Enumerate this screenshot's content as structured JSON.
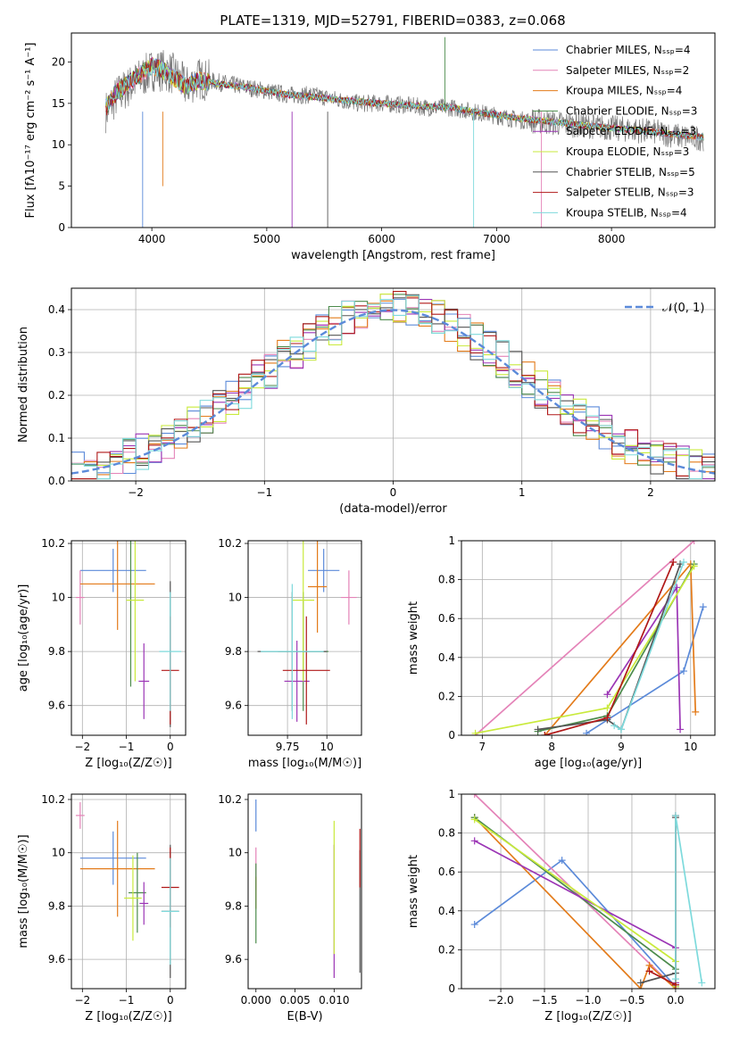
{
  "figure": {
    "title": "PLATE=1319, MJD=52791, FIBERID=0383, z=0.068"
  },
  "colors": [
    "#5b8ad9",
    "#e483b8",
    "#e37b1a",
    "#4c8b4c",
    "#9b35b5",
    "#c9ea3c",
    "#555555",
    "#b01818",
    "#7edadc"
  ],
  "chart_data": [
    {
      "id": "spectrum",
      "type": "line",
      "xlabel": "wavelength [Angstrom, rest frame]",
      "ylabel": "Flux [fλ10⁻¹⁷ erg cm⁻² s⁻¹ A⁻¹]",
      "xlim": [
        3300,
        8900
      ],
      "ylim": [
        0,
        23.5
      ],
      "xticks": [
        4000,
        5000,
        6000,
        7000,
        8000
      ],
      "yticks": [
        0,
        5,
        10,
        15,
        20
      ],
      "grid": false,
      "legend_position": "right",
      "data": {
        "x": [
          3600,
          3700,
          3800,
          3900,
          4000,
          4100,
          4200,
          4300,
          4400,
          4600,
          4800,
          5000,
          5200,
          5400,
          5600,
          5800,
          6000,
          6200,
          6400,
          6600,
          6800,
          7000,
          7200,
          7400,
          7600,
          7800,
          8000,
          8200,
          8400,
          8600,
          8800
        ],
        "observed": [
          14,
          16,
          17,
          18,
          19,
          19,
          18.5,
          17,
          18,
          17.5,
          17,
          16.5,
          16,
          16,
          15.5,
          15,
          15,
          14.8,
          14.5,
          14.5,
          14,
          13.5,
          13,
          12.8,
          12.5,
          12.3,
          12,
          11.8,
          11.5,
          11,
          10.8
        ],
        "model": [
          14.5,
          16.5,
          17.5,
          18.5,
          19.5,
          19,
          18,
          17,
          17.8,
          17.3,
          17,
          16.5,
          16,
          15.8,
          15.5,
          15.2,
          15,
          14.8,
          14.6,
          14.5,
          14,
          13.6,
          13.2,
          12.9,
          12.6,
          12.3,
          12,
          11.8,
          11.5,
          11.2,
          10.9
        ]
      },
      "series": [
        {
          "name": "Chabrier MILES, Nₛₛₚ=4"
        },
        {
          "name": "Salpeter MILES, Nₛₛₚ=2"
        },
        {
          "name": "Kroupa MILES, Nₛₛₚ=4"
        },
        {
          "name": "Chabrier ELODIE, Nₛₛₚ=3"
        },
        {
          "name": "Salpeter ELODIE, Nₛₛₚ=3"
        },
        {
          "name": "Kroupa ELODIE, Nₛₛₚ=3"
        },
        {
          "name": "Chabrier STELIB, Nₛₛₚ=5"
        },
        {
          "name": "Salpeter STELIB, Nₛₛₚ=3"
        },
        {
          "name": "Kroupa STELIB, Nₛₛₚ=4"
        }
      ]
    },
    {
      "id": "residuals",
      "type": "line",
      "xlabel": "(data-model)/error",
      "ylabel": "Normed distribution",
      "xlim": [
        -2.5,
        2.5
      ],
      "ylim": [
        0,
        0.45
      ],
      "xticks": [
        -2,
        -1,
        0,
        1,
        2
      ],
      "yticks": [
        0.0,
        0.1,
        0.2,
        0.3,
        0.4
      ],
      "grid": true,
      "legend_position": "top-right",
      "legend_label": "𝒩(0, 1)",
      "bin_centers": [
        -2.45,
        -2.35,
        -2.25,
        -2.15,
        -2.05,
        -1.95,
        -1.85,
        -1.75,
        -1.65,
        -1.55,
        -1.45,
        -1.35,
        -1.25,
        -1.15,
        -1.05,
        -0.95,
        -0.85,
        -0.75,
        -0.65,
        -0.55,
        -0.45,
        -0.35,
        -0.25,
        -0.15,
        -0.05,
        0.05,
        0.15,
        0.25,
        0.35,
        0.45,
        0.55,
        0.65,
        0.75,
        0.85,
        0.95,
        1.05,
        1.15,
        1.25,
        1.35,
        1.45,
        1.55,
        1.65,
        1.75,
        1.85,
        1.95,
        2.05,
        2.15,
        2.25,
        2.35,
        2.45
      ],
      "gaussian": {
        "mean": 0,
        "sigma": 1
      }
    },
    {
      "id": "age-vs-Z",
      "type": "scatter",
      "xlabel": "Z [log₁₀(Z/Z☉)]",
      "ylabel": "age  [log₁₀(age/yr)]",
      "xlim": [
        -2.25,
        0.35
      ],
      "ylim": [
        9.49,
        10.21
      ],
      "xticks": [
        -2,
        -1,
        0
      ],
      "yticks": [
        9.6,
        9.8,
        10.0,
        10.2
      ],
      "grid": true,
      "points": [
        {
          "x": -1.3,
          "y": 10.1,
          "xerr": 0.75,
          "yerr": 0.08
        },
        {
          "x": -2.05,
          "y": 10.0,
          "xerr": 0.1,
          "yerr": 0.1
        },
        {
          "x": -1.2,
          "y": 10.05,
          "xerr": 0.85,
          "yerr": 0.17
        },
        {
          "x": -0.9,
          "y": 9.99,
          "xerr": 0.0,
          "yerr": 0.32
        },
        {
          "x": -0.6,
          "y": 9.69,
          "xerr": 0.12,
          "yerr": 0.14
        },
        {
          "x": -0.8,
          "y": 9.99,
          "xerr": 0.2,
          "yerr": 0.3
        },
        {
          "x": 0.0,
          "y": 9.79,
          "xerr": 0.0,
          "yerr": 0.27
        },
        {
          "x": 0.0,
          "y": 9.73,
          "xerr": 0.2,
          "yerr": 0.2
        },
        {
          "x": 0.0,
          "y": 9.8,
          "xerr": 0.25,
          "yerr": 0.22
        }
      ]
    },
    {
      "id": "age-vs-mass",
      "type": "scatter",
      "xlabel": "mass [log₁₀(M/M☉)]",
      "ylabel": "",
      "xlim": [
        9.5,
        10.22
      ],
      "ylim": [
        9.49,
        10.21
      ],
      "xticks": [
        9.75,
        10.0
      ],
      "yticks": [
        9.6,
        9.8,
        10.0,
        10.2
      ],
      "grid": true,
      "points": [
        {
          "x": 9.98,
          "y": 10.1,
          "xerr": 0.1,
          "yerr": 0.08
        },
        {
          "x": 10.14,
          "y": 10.0,
          "xerr": 0.05,
          "yerr": 0.1
        },
        {
          "x": 9.94,
          "y": 10.04,
          "xerr": 0.06,
          "yerr": 0.17
        },
        {
          "x": 9.85,
          "y": 9.8,
          "xerr": 0.16,
          "yerr": 0.22
        },
        {
          "x": 9.81,
          "y": 9.69,
          "xerr": 0.08,
          "yerr": 0.15
        },
        {
          "x": 9.85,
          "y": 9.99,
          "xerr": 0.07,
          "yerr": 0.3
        },
        {
          "x": 9.78,
          "y": 9.8,
          "xerr": 0.22,
          "yerr": 0.22
        },
        {
          "x": 9.87,
          "y": 9.73,
          "xerr": 0.15,
          "yerr": 0.2
        },
        {
          "x": 9.78,
          "y": 9.8,
          "xerr": 0.2,
          "yerr": 0.25
        }
      ]
    },
    {
      "id": "weight-vs-age",
      "type": "line",
      "xlabel": "age  [log₁₀(age/yr)]",
      "ylabel": "mass weight",
      "xlim": [
        6.7,
        10.35
      ],
      "ylim": [
        0,
        1.0
      ],
      "xticks": [
        7,
        8,
        9,
        10
      ],
      "yticks": [
        0.0,
        0.2,
        0.4,
        0.6,
        0.8,
        1.0
      ],
      "grid": true,
      "series": [
        {
          "x": [
            8.5,
            9.9,
            10.18
          ],
          "y": [
            0.01,
            0.33,
            0.66
          ]
        },
        {
          "x": [
            6.9,
            10.05
          ],
          "y": [
            0.0,
            1.0
          ]
        },
        {
          "x": [
            7.9,
            10.0,
            10.07
          ],
          "y": [
            0.0,
            0.88,
            0.12
          ]
        },
        {
          "x": [
            7.8,
            8.8,
            10.05
          ],
          "y": [
            0.02,
            0.1,
            0.88
          ]
        },
        {
          "x": [
            8.8,
            9.8,
            9.85
          ],
          "y": [
            0.21,
            0.76,
            0.03
          ]
        },
        {
          "x": [
            6.9,
            8.8,
            10.05
          ],
          "y": [
            0.01,
            0.14,
            0.87
          ]
        },
        {
          "x": [
            7.8,
            8.8,
            9.0,
            9.85
          ],
          "y": [
            0.03,
            0.08,
            0.03,
            0.88
          ]
        },
        {
          "x": [
            7.9,
            8.8,
            9.75
          ],
          "y": [
            0.0,
            0.09,
            0.89
          ]
        },
        {
          "x": [
            8.9,
            9.0,
            9.9
          ],
          "y": [
            0.05,
            0.03,
            0.89
          ]
        }
      ]
    },
    {
      "id": "mass-vs-Z",
      "type": "scatter",
      "xlabel": "Z [log₁₀(Z/Z☉)]",
      "ylabel": "mass [log₁₀(M/M☉)]",
      "xlim": [
        -2.25,
        0.35
      ],
      "ylim": [
        9.49,
        10.22
      ],
      "xticks": [
        -2,
        -1,
        0
      ],
      "yticks": [
        9.6,
        9.8,
        10.0,
        10.2
      ],
      "grid": true,
      "points": [
        {
          "x": -1.3,
          "y": 9.98,
          "xerr": 0.75,
          "yerr": 0.1
        },
        {
          "x": -2.05,
          "y": 10.14,
          "xerr": 0.1,
          "yerr": 0.05
        },
        {
          "x": -1.2,
          "y": 9.94,
          "xerr": 0.85,
          "yerr": 0.18
        },
        {
          "x": -0.75,
          "y": 9.85,
          "xerr": 0.2,
          "yerr": 0.15
        },
        {
          "x": -0.6,
          "y": 9.81,
          "xerr": 0.1,
          "yerr": 0.08
        },
        {
          "x": -0.85,
          "y": 9.83,
          "xerr": 0.2,
          "yerr": 0.16
        },
        {
          "x": 0.0,
          "y": 9.78,
          "xerr": 0.2,
          "yerr": 0.25
        },
        {
          "x": 0.0,
          "y": 9.87,
          "xerr": 0.2,
          "yerr": 0.15
        },
        {
          "x": 0.0,
          "y": 9.78,
          "xerr": 0.2,
          "yerr": 0.2
        }
      ]
    },
    {
      "id": "mass-vs-ebv",
      "type": "scatter",
      "xlabel": "E(B-V)",
      "ylabel": "",
      "xlim": [
        -0.001,
        0.0135
      ],
      "ylim": [
        9.49,
        10.22
      ],
      "xticks": [
        0.0,
        0.005,
        0.01
      ],
      "xtick_labels": [
        "0.000",
        "0.005",
        "0.010"
      ],
      "yticks": [
        9.6,
        9.8,
        10.0,
        10.2
      ],
      "grid": false,
      "points": [
        {
          "x": 0.0,
          "y": 10.14,
          "yerr": 0.06
        },
        {
          "x": 0.0,
          "y": 9.94,
          "yerr": 0.08
        },
        {
          "x": 0.0,
          "y": 9.85,
          "yerr": 0.06
        },
        {
          "x": 0.0,
          "y": 9.81,
          "yerr": 0.15
        },
        {
          "x": 0.01,
          "y": 9.78,
          "yerr": 0.25
        },
        {
          "x": 0.01,
          "y": 9.87,
          "yerr": 0.25
        },
        {
          "x": 0.0133,
          "y": 9.78,
          "yerr": 0.23
        },
        {
          "x": 0.0133,
          "y": 9.98,
          "yerr": 0.11
        }
      ]
    },
    {
      "id": "weight-vs-Z",
      "type": "line",
      "xlabel": "Z [log₁₀(Z/Z☉)]",
      "ylabel": "mass weight",
      "xlim": [
        -2.45,
        0.45
      ],
      "ylim": [
        0,
        1.0
      ],
      "xticks": [
        -2.0,
        -1.5,
        -1.0,
        -0.5,
        0.0
      ],
      "xtick_labels": [
        "−2.0",
        "−1.5",
        "−1.0",
        "−0.5",
        "0.0"
      ],
      "yticks": [
        0.0,
        0.2,
        0.4,
        0.6,
        0.8,
        1.0
      ],
      "grid": true,
      "series": [
        {
          "x": [
            -2.3,
            -1.3,
            0.0
          ],
          "y": [
            0.33,
            0.66,
            0.01
          ]
        },
        {
          "x": [
            -2.3,
            0.0
          ],
          "y": [
            1.0,
            0.0
          ]
        },
        {
          "x": [
            -2.3,
            -0.4,
            -0.3,
            0.0
          ],
          "y": [
            0.88,
            0.0,
            0.12,
            0.0
          ]
        },
        {
          "x": [
            -2.3,
            0.0,
            0.0
          ],
          "y": [
            0.88,
            0.1,
            0.02
          ]
        },
        {
          "x": [
            -2.3,
            0.0,
            0.0
          ],
          "y": [
            0.76,
            0.21,
            0.03
          ]
        },
        {
          "x": [
            -2.3,
            0.0,
            0.0
          ],
          "y": [
            0.87,
            0.14,
            0.01
          ]
        },
        {
          "x": [
            -0.4,
            0.0,
            0.0
          ],
          "y": [
            0.03,
            0.08,
            0.88
          ]
        },
        {
          "x": [
            -0.3,
            0.0,
            0.0
          ],
          "y": [
            0.09,
            0.02,
            0.89
          ]
        },
        {
          "x": [
            0.3,
            0.0,
            0.0
          ],
          "y": [
            0.03,
            0.89,
            0.05
          ]
        }
      ]
    }
  ]
}
